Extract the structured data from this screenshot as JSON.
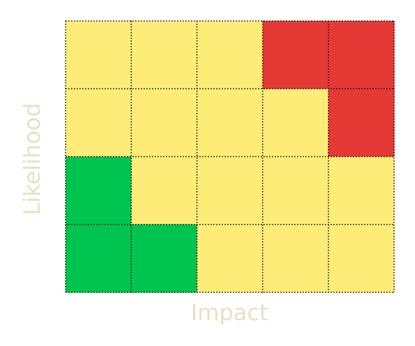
{
  "chart_data": {
    "type": "heatmap",
    "title": "",
    "xlabel": "Impact",
    "ylabel": "Likelihood",
    "rows": 4,
    "cols": 5,
    "row_order": "top-to-bottom",
    "cells": [
      [
        "yellow",
        "yellow",
        "yellow",
        "red",
        "red"
      ],
      [
        "yellow",
        "yellow",
        "yellow",
        "yellow",
        "red"
      ],
      [
        "green",
        "yellow",
        "yellow",
        "yellow",
        "yellow"
      ],
      [
        "green",
        "green",
        "yellow",
        "yellow",
        "yellow"
      ]
    ],
    "colors": {
      "green": "#00c450",
      "yellow": "#fdec77",
      "red": "#e53936",
      "grid": "#000000",
      "label": "#eadfc8"
    },
    "grid": true,
    "grid_style": "dotted"
  }
}
